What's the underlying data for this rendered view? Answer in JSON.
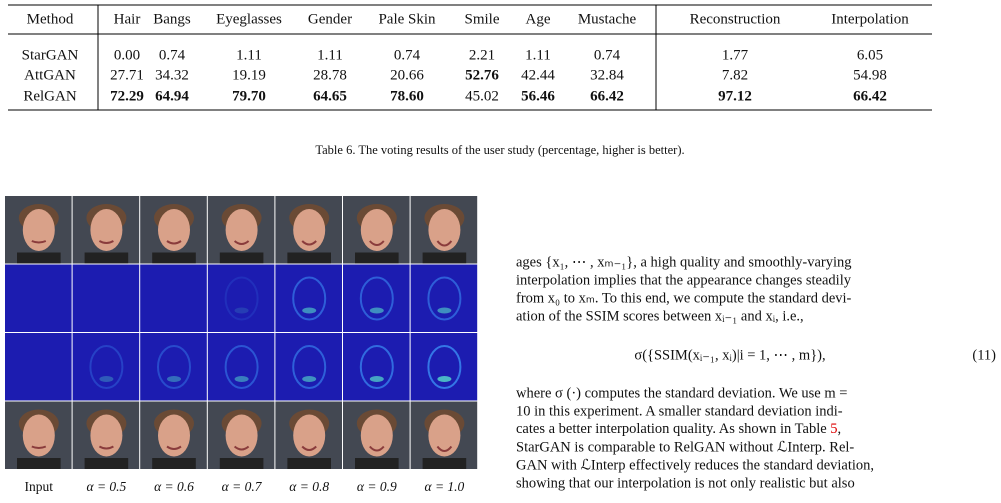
{
  "table": {
    "header": [
      "Method",
      "Hair",
      "Bangs",
      "Eyeglasses",
      "Gender",
      "Pale Skin",
      "Smile",
      "Age",
      "Mustache",
      "Reconstruction",
      "Interpolation"
    ],
    "rows": [
      [
        "StarGAN",
        "0.00",
        "0.74",
        "1.11",
        "1.11",
        "0.74",
        "2.21",
        "1.11",
        "0.74",
        "1.77",
        "6.05"
      ],
      [
        "AttGAN",
        "27.71",
        "34.32",
        "19.19",
        "28.78",
        "20.66",
        "52.76",
        "42.44",
        "32.84",
        "7.82",
        "54.98"
      ],
      [
        "RelGAN",
        "72.29",
        "64.94",
        "79.70",
        "64.65",
        "78.60",
        "45.02",
        "56.46",
        "66.42",
        "97.12",
        "66.42"
      ]
    ],
    "bold": [
      [
        false,
        false,
        false,
        false,
        false,
        false,
        false,
        false,
        false,
        false,
        false
      ],
      [
        false,
        false,
        false,
        false,
        false,
        false,
        true,
        false,
        false,
        false,
        false
      ],
      [
        false,
        true,
        true,
        true,
        true,
        true,
        false,
        true,
        true,
        true,
        true
      ]
    ],
    "caption": "Table 6.  The voting results of the user study (percentage, higher is better)."
  },
  "figure": {
    "labels": [
      "Input",
      "α = 0.5",
      "α = 0.6",
      "α = 0.7",
      "α = 0.8",
      "α = 0.9",
      "α = 1.0"
    ]
  },
  "body": {
    "lines_before": [
      "ages {x₁, ⋯ , xₘ₋₁}, a high quality and smoothly-varying",
      "interpolation implies that the appearance changes steadily",
      "from x₀ to xₘ. To this end, we compute the standard devi-",
      "ation of the SSIM scores between xᵢ₋₁ and xᵢ, i.e.,"
    ],
    "equation": "σ({SSIM(xᵢ₋₁, xᵢ)|i = 1, ⋯ , m}),",
    "equation_number": "(11)",
    "lines_after": [
      "where σ (·) computes the standard deviation. We use m =",
      "10 in this experiment.  A smaller standard deviation indi-"
    ],
    "ref_line_start": "cates a better interpolation quality. As shown in Table ",
    "ref": "5",
    "ref_line_end": ",",
    "lines_end": [
      "StarGAN is comparable to RelGAN without ℒInterp.  Rel-",
      "GAN with ℒInterp effectively reduces the standard deviation,",
      "showing that our interpolation is not only realistic but also"
    ]
  }
}
